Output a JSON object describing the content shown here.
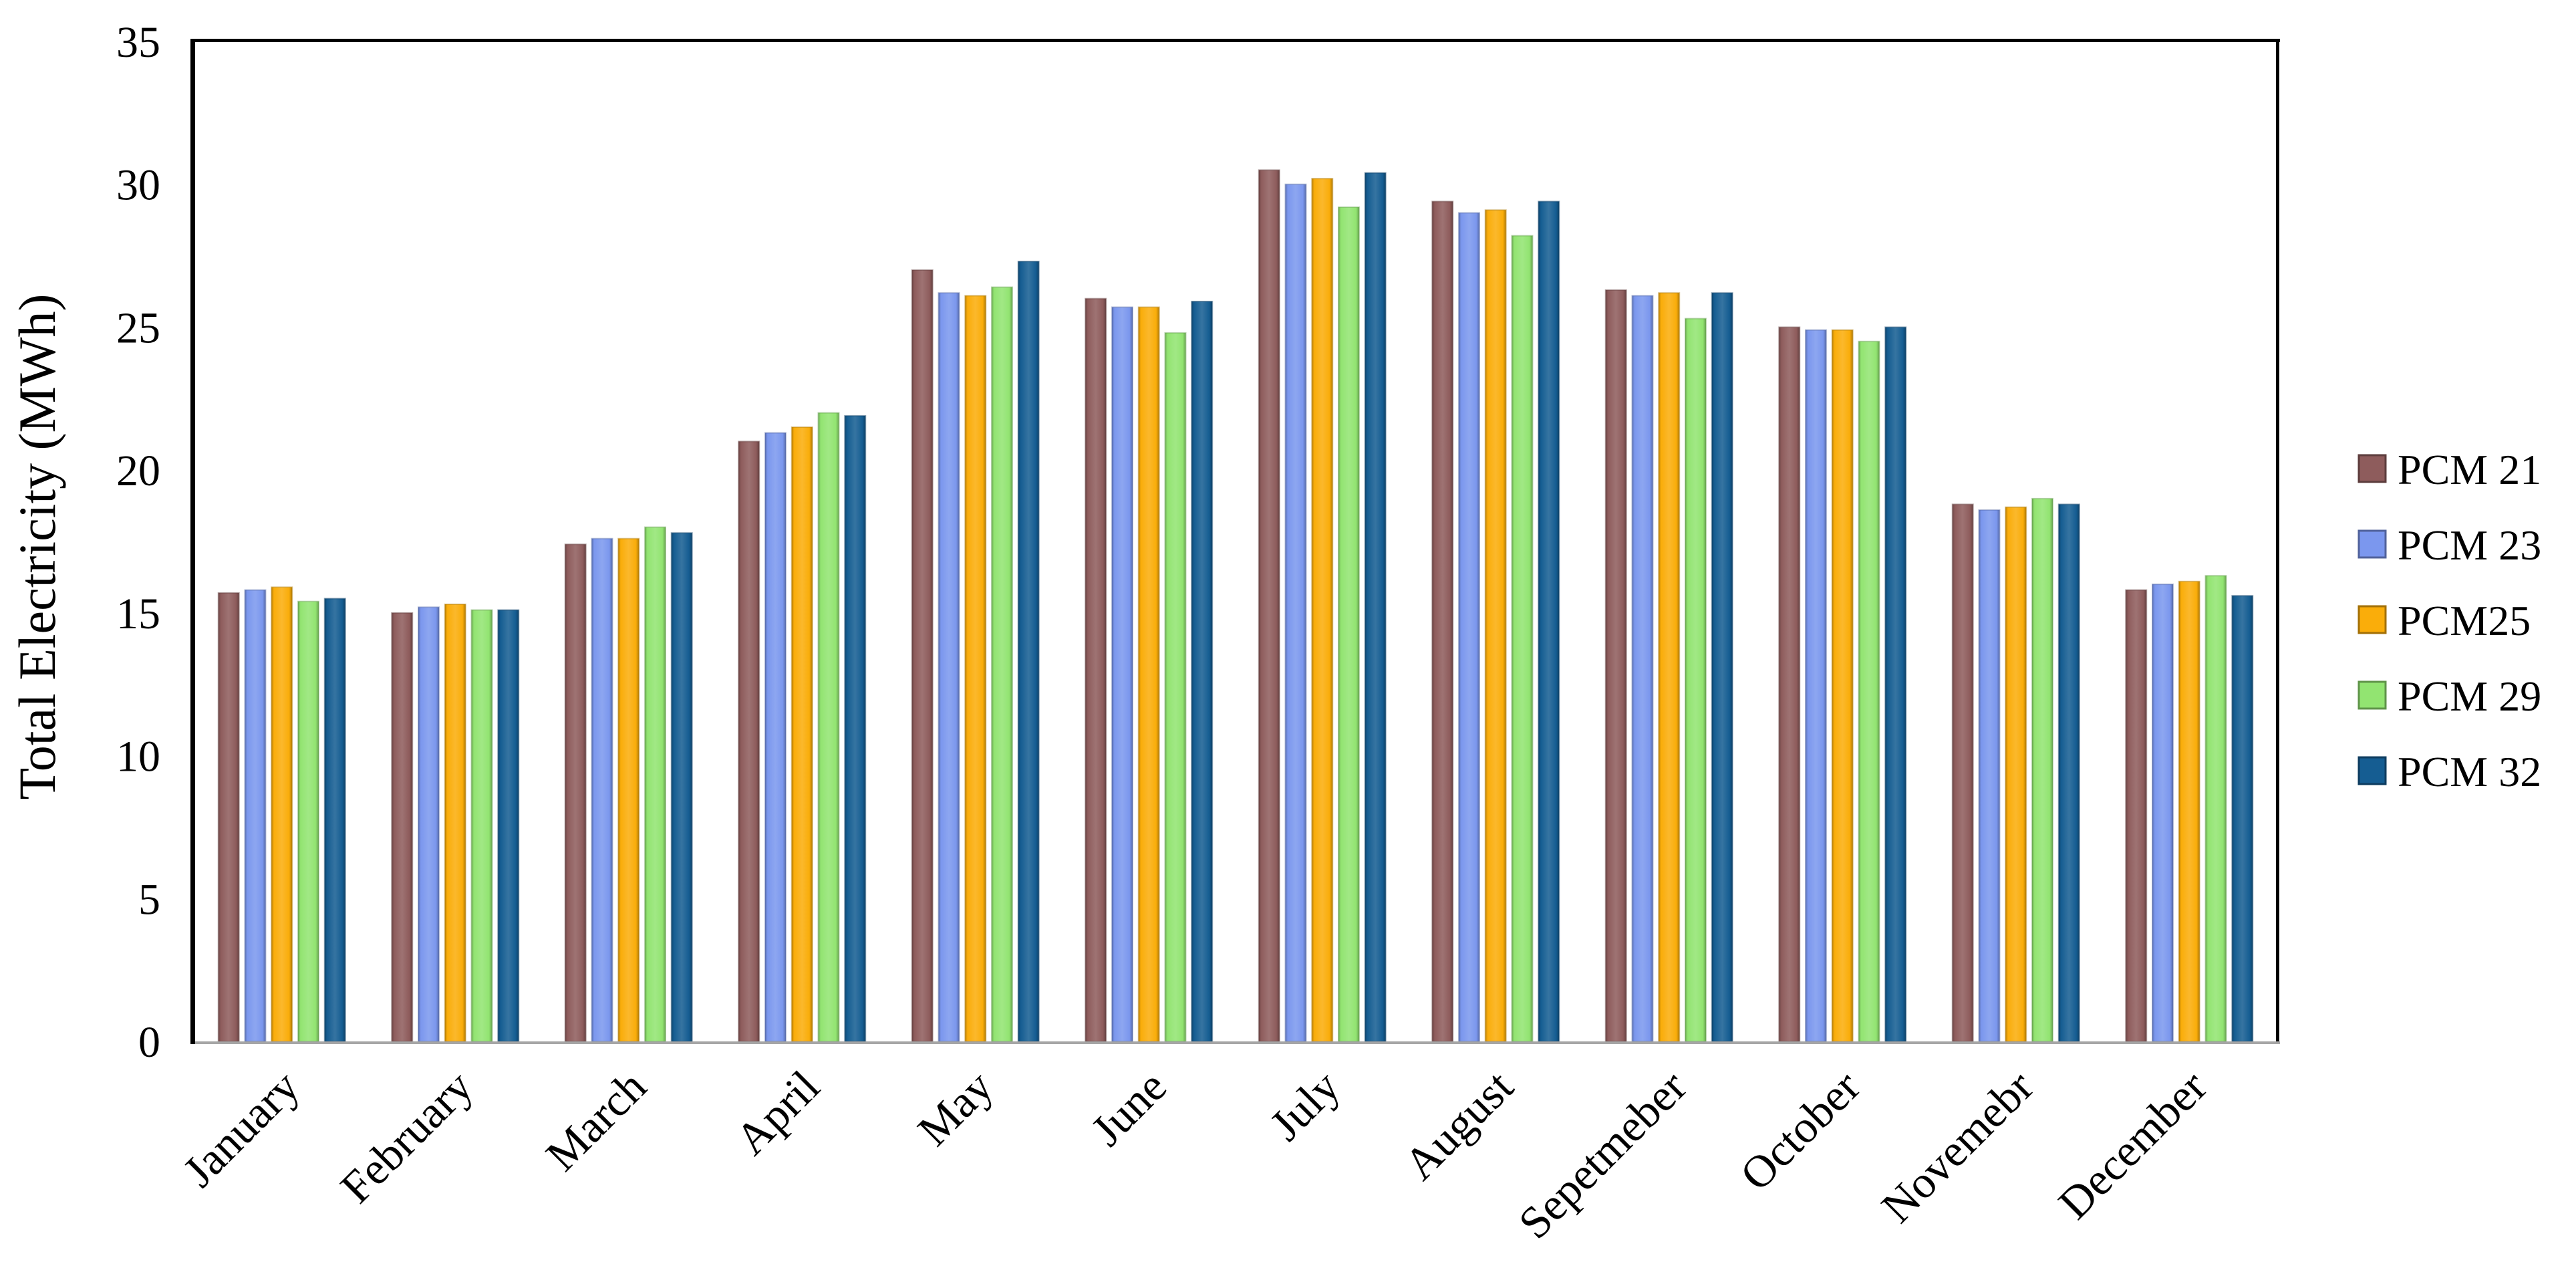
{
  "figure": {
    "background": "#ffffff",
    "text_color": "#000000",
    "axis_color": "#000000",
    "baseline_color": "#a6a6a6"
  },
  "chart_data": {
    "type": "bar",
    "title": "",
    "xlabel": "",
    "ylabel": "Total Electricity (MWh)",
    "ylim": [
      0,
      35
    ],
    "yticks": [
      0,
      5,
      10,
      15,
      20,
      25,
      30,
      35
    ],
    "grid": false,
    "legend_position": "right",
    "categories": [
      "January",
      "February",
      "March",
      "April",
      "May",
      "June",
      "July",
      "August",
      "Sepetmeber",
      "October",
      "Novemebr",
      "December"
    ],
    "series": [
      {
        "name": "PCM 21",
        "color": "#8E5C5C",
        "values": [
          15.7,
          15.0,
          17.4,
          21.0,
          27.0,
          26.0,
          30.5,
          29.4,
          26.3,
          25.0,
          18.8,
          15.8
        ]
      },
      {
        "name": "PCM 23",
        "color": "#7B97EE",
        "values": [
          15.8,
          15.2,
          17.6,
          21.3,
          26.2,
          25.7,
          30.0,
          29.0,
          26.1,
          24.9,
          18.6,
          16.0
        ]
      },
      {
        "name": "PCM25",
        "color": "#FAAD0A",
        "values": [
          15.9,
          15.3,
          17.6,
          21.5,
          26.1,
          25.7,
          30.2,
          29.1,
          26.2,
          24.9,
          18.7,
          16.1
        ]
      },
      {
        "name": "PCM 29",
        "color": "#92E471",
        "values": [
          15.4,
          15.1,
          18.0,
          22.0,
          26.4,
          24.8,
          29.2,
          28.2,
          25.3,
          24.5,
          19.0,
          16.3
        ]
      },
      {
        "name": "PCM 32",
        "color": "#155D92",
        "values": [
          15.5,
          15.1,
          17.8,
          21.9,
          27.3,
          25.9,
          30.4,
          29.4,
          26.2,
          25.0,
          18.8,
          15.6
        ]
      }
    ]
  }
}
